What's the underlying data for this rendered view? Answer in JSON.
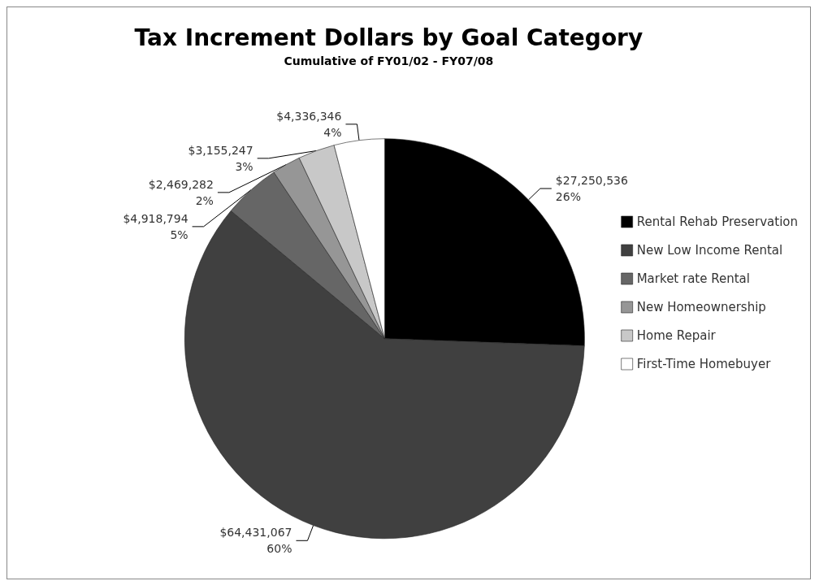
{
  "chart_data": {
    "type": "pie",
    "title": "Tax Increment Dollars by Goal Category",
    "subtitle": "Cumulative of FY01/02 - FY07/08",
    "categories": [
      "Rental Rehab Preservation",
      "New Low Income Rental",
      "Market rate Rental",
      "New Homeownership",
      "Home Repair",
      "First-Time Homebuyer"
    ],
    "values": [
      27250536,
      64431067,
      4918794,
      2469282,
      3155247,
      4336346
    ],
    "colors": [
      "#000000",
      "#404040",
      "#666666",
      "#969696",
      "#c8c8c8",
      "#ffffff"
    ],
    "value_labels": [
      "$27,250,536\n26%",
      "$64,431,067\n60%",
      "$4,918,794\n5%",
      "$2,469,282\n2%",
      "$3,155,247\n3%",
      "$4,336,346\n4%"
    ],
    "legend": "right"
  }
}
